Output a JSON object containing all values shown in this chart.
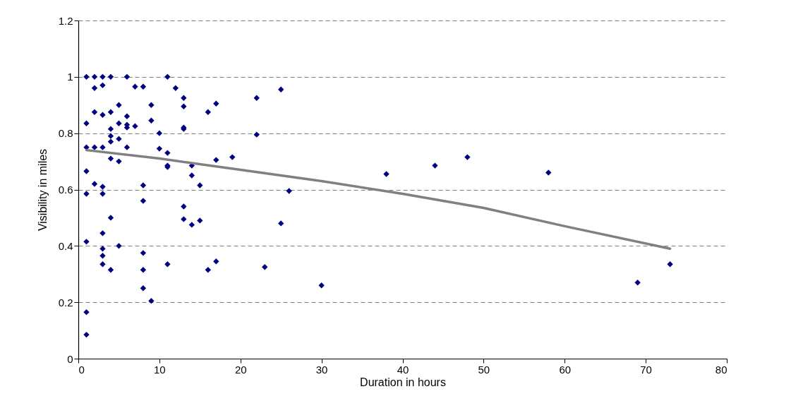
{
  "chart_data": {
    "type": "scatter",
    "xlabel": "Duration in hours",
    "ylabel": "Visibility in miles",
    "xlim": [
      0,
      80
    ],
    "xticks": [
      0,
      10,
      20,
      30,
      40,
      50,
      60,
      70,
      80
    ],
    "ylim": [
      0,
      1.2
    ],
    "yticks": [
      0,
      0.2,
      0.4,
      0.6,
      0.8,
      1,
      1.2
    ],
    "grid": "y",
    "series": [
      {
        "marker": "diamond",
        "color": "#000080",
        "x": [
          1,
          1,
          1,
          1,
          1,
          1,
          1,
          1,
          2,
          2,
          2,
          2,
          2,
          3,
          3,
          3,
          3,
          3,
          3,
          3,
          3,
          3,
          3,
          4,
          4,
          4,
          4,
          4,
          4,
          4,
          4,
          5,
          5,
          5,
          5,
          5,
          6,
          6,
          6,
          6,
          6,
          7,
          7,
          8,
          8,
          8,
          8,
          8,
          8,
          9,
          9,
          9,
          10,
          10,
          11,
          11,
          11,
          11,
          11,
          12,
          13,
          13,
          13,
          13,
          13,
          13,
          14,
          14,
          14,
          15,
          15,
          16,
          16,
          17,
          17,
          17,
          19,
          22,
          22,
          23,
          25,
          25,
          26,
          30,
          38,
          44,
          48,
          58,
          69,
          73
        ],
        "values": [
          1.0,
          0.835,
          0.75,
          0.665,
          0.585,
          0.415,
          0.165,
          0.085,
          1.0,
          0.96,
          0.875,
          0.75,
          0.62,
          1.0,
          0.97,
          0.865,
          0.75,
          0.61,
          0.585,
          0.445,
          0.39,
          0.365,
          0.335,
          1.0,
          0.875,
          0.815,
          0.79,
          0.77,
          0.71,
          0.5,
          0.315,
          0.9,
          0.835,
          0.78,
          0.7,
          0.4,
          1.0,
          0.86,
          0.83,
          0.82,
          0.75,
          0.965,
          0.825,
          0.965,
          0.615,
          0.56,
          0.375,
          0.315,
          0.25,
          0.9,
          0.845,
          0.205,
          0.8,
          0.745,
          1.0,
          0.73,
          0.685,
          0.68,
          0.335,
          0.96,
          0.925,
          0.895,
          0.82,
          0.815,
          0.54,
          0.495,
          0.685,
          0.65,
          0.475,
          0.615,
          0.49,
          0.875,
          0.315,
          0.905,
          0.705,
          0.345,
          0.715,
          0.925,
          0.795,
          0.325,
          0.955,
          0.48,
          0.595,
          0.26,
          0.655,
          0.685,
          0.715,
          0.66,
          0.27,
          0.335
        ]
      },
      {
        "type": "line",
        "color": "#808080",
        "x": [
          1,
          10,
          20,
          30,
          40,
          50,
          60,
          73
        ],
        "values": [
          0.74,
          0.71,
          0.67,
          0.63,
          0.585,
          0.535,
          0.47,
          0.39
        ]
      }
    ]
  }
}
